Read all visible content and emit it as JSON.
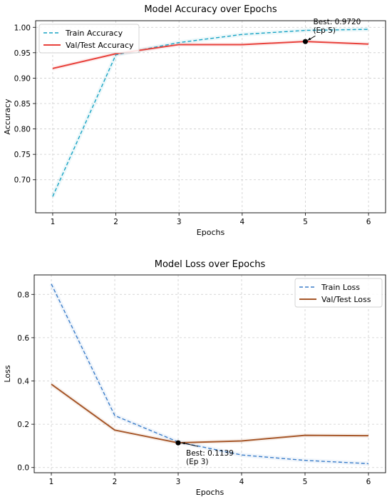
{
  "chart_data": [
    {
      "type": "line",
      "title": "Model Accuracy over Epochs",
      "xlabel": "Epochs",
      "ylabel": "Accuracy",
      "x": [
        1,
        2,
        3,
        4,
        5,
        6
      ],
      "xlim": [
        0.73,
        6.27
      ],
      "ylim": [
        0.635,
        1.013
      ],
      "xticks": [
        1,
        2,
        3,
        4,
        5,
        6
      ],
      "yticks": [
        0.7,
        0.75,
        0.8,
        0.85,
        0.9,
        0.95,
        1.0
      ],
      "ytick_labels": [
        "0.70",
        "0.75",
        "0.80",
        "0.85",
        "0.90",
        "0.95",
        "1.00"
      ],
      "grid": true,
      "legend_position": "top-left",
      "series": [
        {
          "name": "Train Accuracy",
          "values": [
            0.667,
            0.946,
            0.97,
            0.986,
            0.994,
            0.996
          ],
          "color": "#17a3c4",
          "style": "dashed"
        },
        {
          "name": "Val/Test Accuracy",
          "values": [
            0.919,
            0.948,
            0.966,
            0.966,
            0.972,
            0.967
          ],
          "color": "#e8413b",
          "style": "solid"
        }
      ],
      "annotation": {
        "x": 5,
        "y": 0.972,
        "text_line1": "Best: 0.9720",
        "text_line2": "(Ep 5)"
      }
    },
    {
      "type": "line",
      "title": "Model Loss over Epochs",
      "xlabel": "Epochs",
      "ylabel": "Loss",
      "x": [
        1,
        2,
        3,
        4,
        5,
        6
      ],
      "xlim": [
        0.73,
        6.27
      ],
      "ylim": [
        -0.024,
        0.89
      ],
      "xticks": [
        1,
        2,
        3,
        4,
        5,
        6
      ],
      "yticks": [
        0.0,
        0.2,
        0.4,
        0.6,
        0.8
      ],
      "ytick_labels": [
        "0.0",
        "0.2",
        "0.4",
        "0.6",
        "0.8"
      ],
      "grid": true,
      "legend_position": "top-right",
      "series": [
        {
          "name": "Train Loss",
          "values": [
            0.848,
            0.24,
            0.118,
            0.058,
            0.033,
            0.018
          ],
          "color": "#3a7dc9",
          "style": "dashed"
        },
        {
          "name": "Val/Test Loss",
          "values": [
            0.385,
            0.173,
            0.114,
            0.123,
            0.149,
            0.147
          ],
          "color": "#a65628",
          "style": "solid"
        }
      ],
      "annotation": {
        "x": 3,
        "y": 0.1139,
        "text_line1": "Best: 0.1139",
        "text_line2": "(Ep 3)"
      }
    }
  ]
}
